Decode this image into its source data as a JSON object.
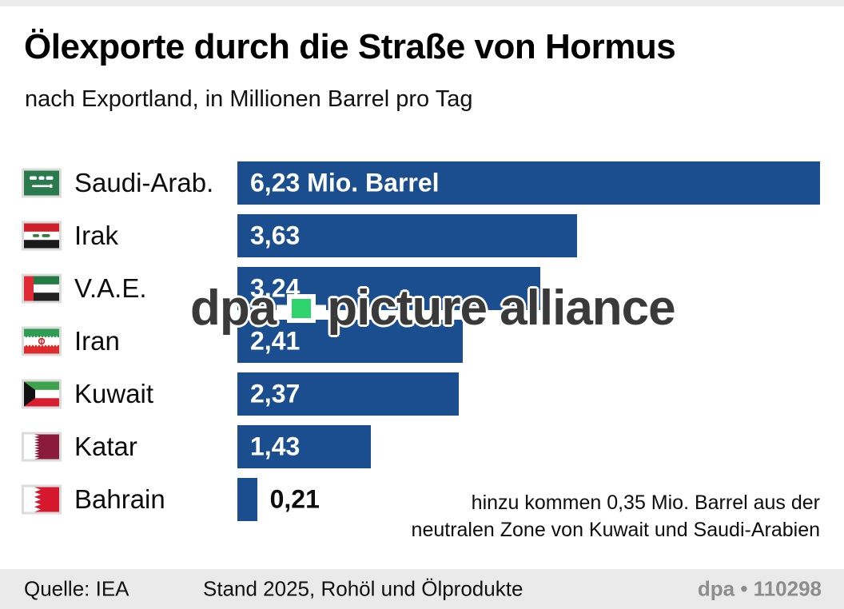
{
  "header": {
    "title": "Ölexporte durch die Straße von Hormus",
    "subtitle": "nach Exportland, in Millionen Barrel pro Tag"
  },
  "chart_data": {
    "type": "bar",
    "title": "Ölexporte durch die Straße von Hormus",
    "xlabel": "Millionen Barrel pro Tag",
    "categories": [
      "Saudi-Arab.",
      "Irak",
      "V.A.E.",
      "Iran",
      "Kuwait",
      "Katar",
      "Bahrain"
    ],
    "values": [
      6.23,
      3.63,
      3.24,
      2.41,
      2.37,
      1.43,
      0.21
    ],
    "value_labels": [
      "6,23 Mio. Barrel",
      "3,63",
      "3,24",
      "2,41",
      "2,37",
      "1,43",
      "0,21"
    ],
    "flags": [
      "saudi-arabia-flag-icon",
      "iraq-flag-icon",
      "uae-flag-icon",
      "iran-flag-icon",
      "kuwait-flag-icon",
      "qatar-flag-icon",
      "bahrain-flag-icon"
    ],
    "xlim": [
      0,
      6.23
    ],
    "bar_color": "#1b4e8e",
    "grid": false,
    "orientation": "horizontal"
  },
  "annotation": {
    "line1": "hinzu kommen 0,35 Mio. Barrel aus der",
    "line2": "neutralen Zone von Kuwait und Saudi-Arabien"
  },
  "watermark": {
    "part1": "dpa",
    "part2": "picture alliance",
    "dot_color": "#2fd36e"
  },
  "footer": {
    "source": "Quelle: IEA",
    "status": "Stand 2025, Rohöl und Ölprodukte",
    "credit": "dpa • 110298"
  },
  "colors": {
    "bar": "#1b4e8e",
    "footer_bg": "#eaeaea",
    "credit_text": "#8d8d8d",
    "top_strip": "#ececec",
    "watermark_text": "#3a3a3a"
  }
}
